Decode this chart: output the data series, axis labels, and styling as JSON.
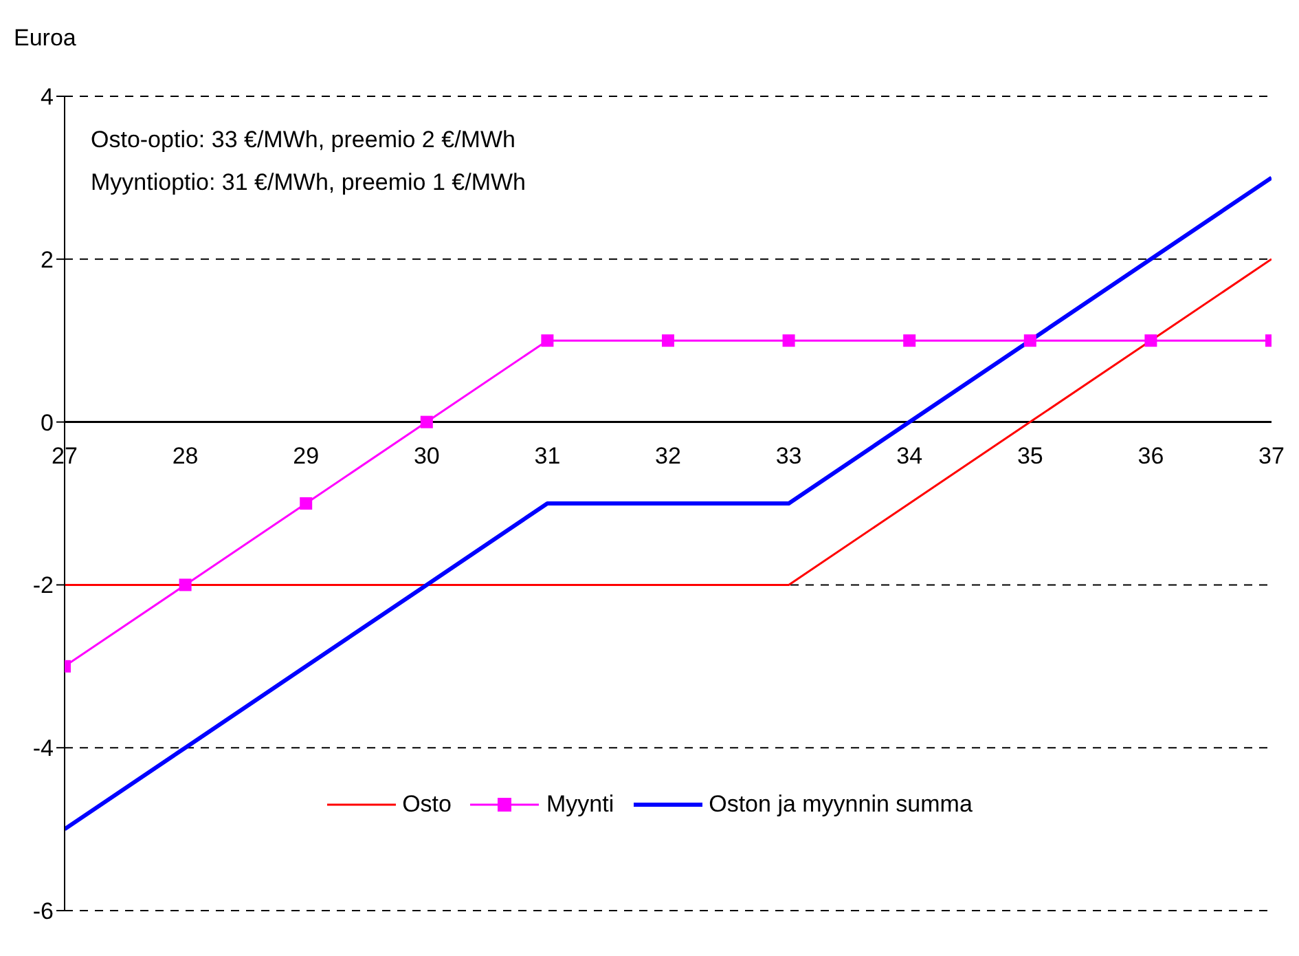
{
  "chart_data": {
    "type": "line",
    "ylabel": "Euroa",
    "annotations": [
      "Osto-optio: 33 €/MWh, preemio 2 €/MWh",
      "Myyntioptio: 31 €/MWh, preemio 1 €/MWh"
    ],
    "x": [
      27,
      28,
      29,
      30,
      31,
      32,
      33,
      34,
      35,
      36,
      37
    ],
    "xlim": [
      27,
      37
    ],
    "xticks": [
      27,
      28,
      29,
      30,
      31,
      32,
      33,
      34,
      35,
      36,
      37
    ],
    "ylim": [
      -6,
      4
    ],
    "yticks": [
      -6,
      -4,
      -2,
      0,
      2,
      4
    ],
    "grid": "y",
    "legend": "bottom",
    "series": [
      {
        "name": "Osto",
        "color": "#ff0000",
        "marker": "none",
        "values": [
          -2,
          -2,
          -2,
          -2,
          -2,
          -2,
          -2,
          -1,
          0,
          1,
          2
        ]
      },
      {
        "name": "Myynti",
        "color": "#ff00ff",
        "marker": "square",
        "values": [
          -3,
          -2,
          -1,
          0,
          1,
          1,
          1,
          1,
          1,
          1,
          1
        ]
      },
      {
        "name": "Oston ja myynnin summa",
        "color": "#0000ff",
        "marker": "none",
        "values": [
          -5,
          -4,
          -3,
          -2,
          -1,
          -1,
          -1,
          0,
          1,
          2,
          3
        ]
      }
    ]
  }
}
